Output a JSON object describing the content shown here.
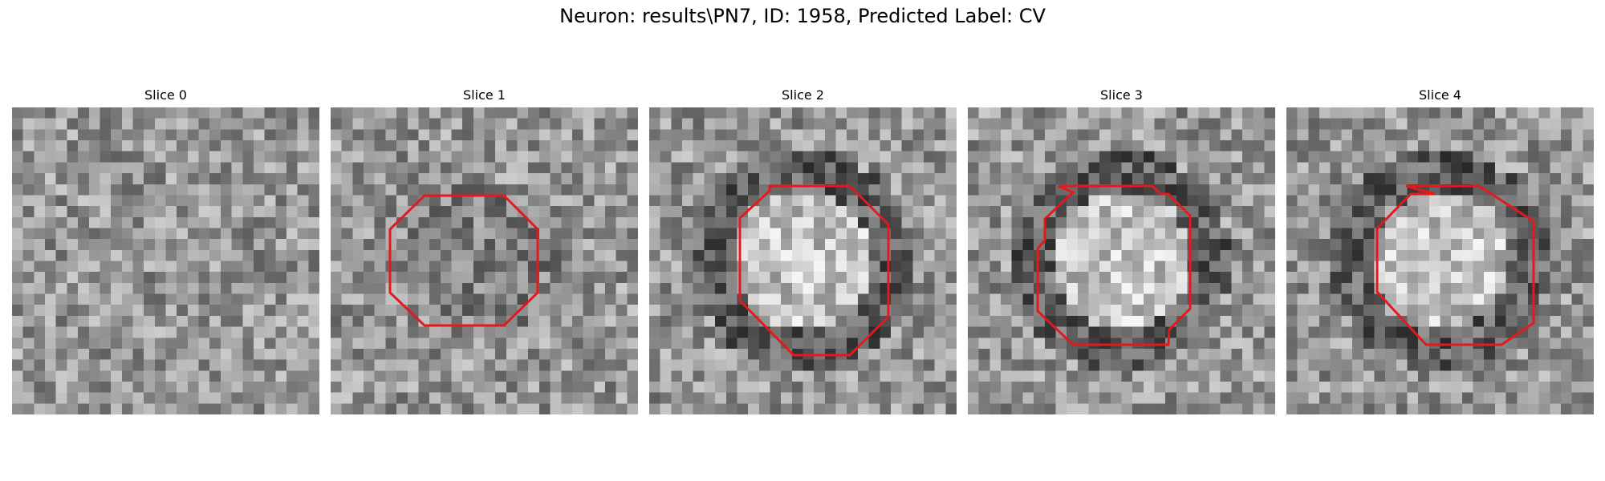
{
  "figure": {
    "title": "Neuron: results\\PN7, ID: 1958, Predicted Label: CV",
    "contour_color": "#e31a1c"
  },
  "panels": [
    {
      "title": "Slice 0",
      "has_contour": false
    },
    {
      "title": "Slice 1",
      "has_contour": true
    },
    {
      "title": "Slice 2",
      "has_contour": true
    },
    {
      "title": "Slice 3",
      "has_contour": true
    },
    {
      "title": "Slice 4",
      "has_contour": true
    }
  ]
}
